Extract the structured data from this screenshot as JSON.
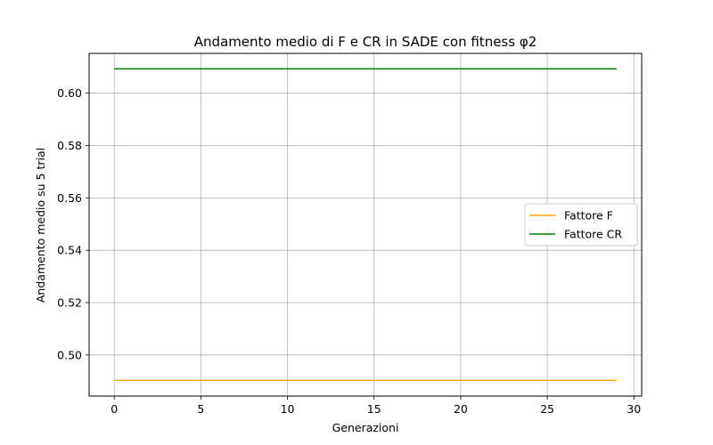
{
  "chart_data": {
    "type": "line",
    "title": "Andamento medio di F e CR in SADE con fitness φ2",
    "xlabel": "Generazioni",
    "ylabel": "Andamento medio su 5 trial",
    "xlim": [
      -1.45,
      30.45
    ],
    "ylim": [
      0.4843,
      0.6152
    ],
    "xticks": [
      0,
      5,
      10,
      15,
      20,
      25,
      30
    ],
    "xtick_labels": [
      "0",
      "5",
      "10",
      "15",
      "20",
      "25",
      "30"
    ],
    "yticks": [
      0.5,
      0.52,
      0.54,
      0.56,
      0.58,
      0.6
    ],
    "ytick_labels": [
      "0.50",
      "0.52",
      "0.54",
      "0.56",
      "0.58",
      "0.60"
    ],
    "grid": true,
    "legend_position": "center-right",
    "x": [
      0,
      29
    ],
    "series": [
      {
        "name": "Fattore F",
        "color": "#ffa500",
        "values": [
          0.4903,
          0.4903
        ]
      },
      {
        "name": "Fattore CR",
        "color": "#008000",
        "values": [
          0.6093,
          0.6093
        ]
      }
    ]
  }
}
